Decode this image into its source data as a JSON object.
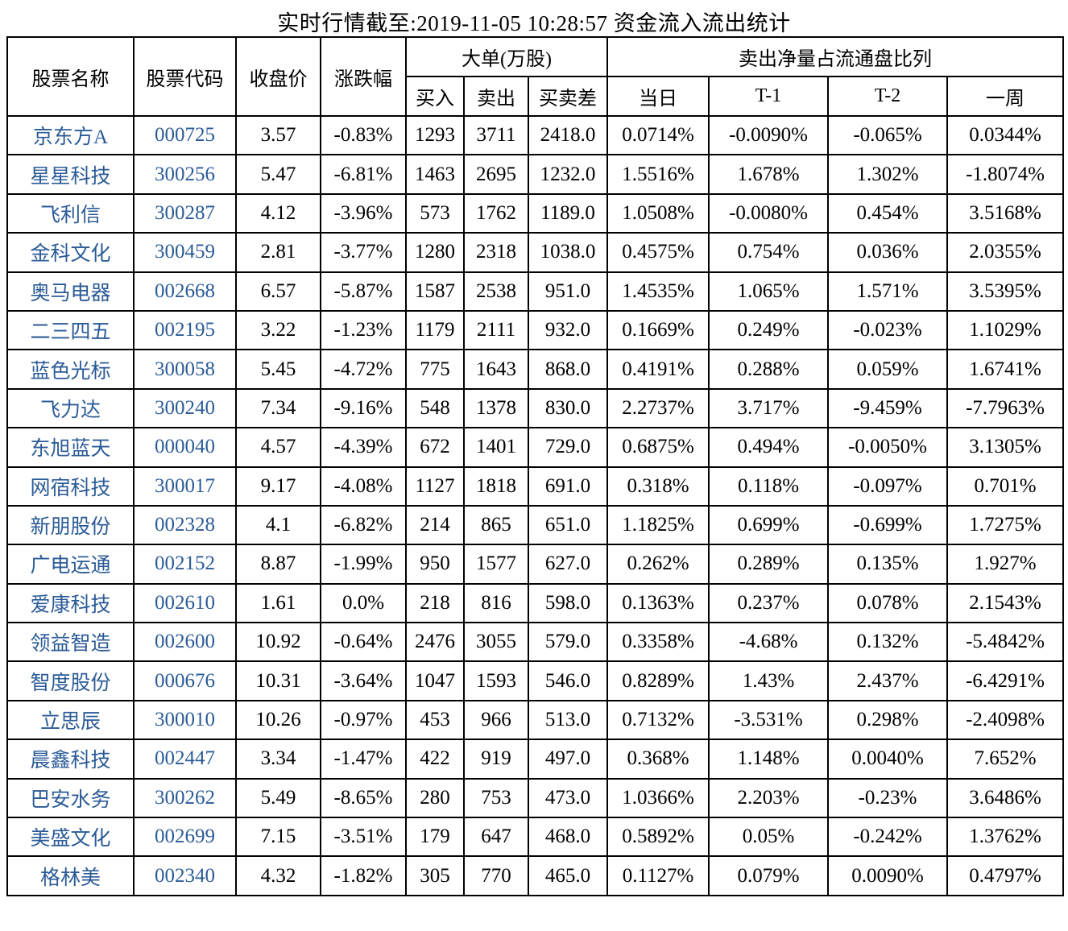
{
  "title": "实时行情截至:2019-11-05 10:28:57 资金流入流出统计",
  "colors": {
    "stock_link_blue": "#2b5b97",
    "border_black": "#000000",
    "text_black": "#000000",
    "background": "#ffffff"
  },
  "table": {
    "header": {
      "stock_name": "股票名称",
      "stock_code": "股票代码",
      "close_price": "收盘价",
      "change_pct": "涨跌幅",
      "big_order_group": "大单(万股)",
      "big_order_sub": [
        "买入",
        "卖出",
        "买卖差"
      ],
      "net_sell_group": "卖出净量占流通盘比列",
      "net_sell_sub": [
        "当日",
        "T-1",
        "T-2",
        "一周"
      ]
    },
    "rows": [
      [
        "京东方A",
        "000725",
        "3.57",
        "-0.83%",
        "1293",
        "3711",
        "2418.0",
        "0.0714%",
        "-0.0090%",
        "-0.065%",
        "0.0344%"
      ],
      [
        "星星科技",
        "300256",
        "5.47",
        "-6.81%",
        "1463",
        "2695",
        "1232.0",
        "1.5516%",
        "1.678%",
        "1.302%",
        "-1.8074%"
      ],
      [
        "飞利信",
        "300287",
        "4.12",
        "-3.96%",
        "573",
        "1762",
        "1189.0",
        "1.0508%",
        "-0.0080%",
        "0.454%",
        "3.5168%"
      ],
      [
        "金科文化",
        "300459",
        "2.81",
        "-3.77%",
        "1280",
        "2318",
        "1038.0",
        "0.4575%",
        "0.754%",
        "0.036%",
        "2.0355%"
      ],
      [
        "奥马电器",
        "002668",
        "6.57",
        "-5.87%",
        "1587",
        "2538",
        "951.0",
        "1.4535%",
        "1.065%",
        "1.571%",
        "3.5395%"
      ],
      [
        "二三四五",
        "002195",
        "3.22",
        "-1.23%",
        "1179",
        "2111",
        "932.0",
        "0.1669%",
        "0.249%",
        "-0.023%",
        "1.1029%"
      ],
      [
        "蓝色光标",
        "300058",
        "5.45",
        "-4.72%",
        "775",
        "1643",
        "868.0",
        "0.4191%",
        "0.288%",
        "0.059%",
        "1.6741%"
      ],
      [
        "飞力达",
        "300240",
        "7.34",
        "-9.16%",
        "548",
        "1378",
        "830.0",
        "2.2737%",
        "3.717%",
        "-9.459%",
        "-7.7963%"
      ],
      [
        "东旭蓝天",
        "000040",
        "4.57",
        "-4.39%",
        "672",
        "1401",
        "729.0",
        "0.6875%",
        "0.494%",
        "-0.0050%",
        "3.1305%"
      ],
      [
        "网宿科技",
        "300017",
        "9.17",
        "-4.08%",
        "1127",
        "1818",
        "691.0",
        "0.318%",
        "0.118%",
        "-0.097%",
        "0.701%"
      ],
      [
        "新朋股份",
        "002328",
        "4.1",
        "-6.82%",
        "214",
        "865",
        "651.0",
        "1.1825%",
        "0.699%",
        "-0.699%",
        "1.7275%"
      ],
      [
        "广电运通",
        "002152",
        "8.87",
        "-1.99%",
        "950",
        "1577",
        "627.0",
        "0.262%",
        "0.289%",
        "0.135%",
        "1.927%"
      ],
      [
        "爱康科技",
        "002610",
        "1.61",
        "0.0%",
        "218",
        "816",
        "598.0",
        "0.1363%",
        "0.237%",
        "0.078%",
        "2.1543%"
      ],
      [
        "领益智造",
        "002600",
        "10.92",
        "-0.64%",
        "2476",
        "3055",
        "579.0",
        "0.3358%",
        "-4.68%",
        "0.132%",
        "-5.4842%"
      ],
      [
        "智度股份",
        "000676",
        "10.31",
        "-3.64%",
        "1047",
        "1593",
        "546.0",
        "0.8289%",
        "1.43%",
        "2.437%",
        "-6.4291%"
      ],
      [
        "立思辰",
        "300010",
        "10.26",
        "-0.97%",
        "453",
        "966",
        "513.0",
        "0.7132%",
        "-3.531%",
        "0.298%",
        "-2.4098%"
      ],
      [
        "晨鑫科技",
        "002447",
        "3.34",
        "-1.47%",
        "422",
        "919",
        "497.0",
        "0.368%",
        "1.148%",
        "0.0040%",
        "7.652%"
      ],
      [
        "巴安水务",
        "300262",
        "5.49",
        "-8.65%",
        "280",
        "753",
        "473.0",
        "1.0366%",
        "2.203%",
        "-0.23%",
        "3.6486%"
      ],
      [
        "美盛文化",
        "002699",
        "7.15",
        "-3.51%",
        "179",
        "647",
        "468.0",
        "0.5892%",
        "0.05%",
        "-0.242%",
        "1.3762%"
      ],
      [
        "格林美",
        "002340",
        "4.32",
        "-1.82%",
        "305",
        "770",
        "465.0",
        "0.1127%",
        "0.079%",
        "0.0090%",
        "0.4797%"
      ]
    ],
    "cell_names": [
      "stock-name-cell",
      "stock-code-cell",
      "close-price-cell",
      "change-pct-cell",
      "buy-cell",
      "sell-cell",
      "diff-cell",
      "today-cell",
      "t1-cell",
      "t2-cell",
      "week-cell"
    ]
  }
}
